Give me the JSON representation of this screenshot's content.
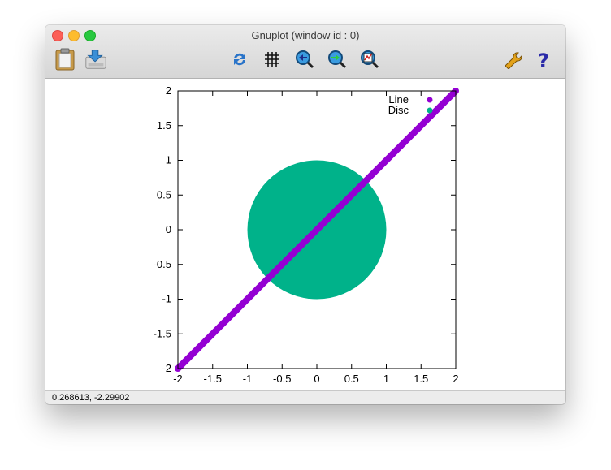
{
  "window": {
    "title": "Gnuplot (window id : 0)"
  },
  "toolbar": {
    "copy_icon": "clipboard-icon",
    "export_icon": "export-icon",
    "replot_icon": "replot-icon",
    "grid_icon": "grid-icon",
    "prev_zoom_icon": "zoom-previous-icon",
    "next_zoom_icon": "zoom-next-icon",
    "autoscale_icon": "zoom-autoscale-icon",
    "config_icon": "wrench-icon",
    "help_icon": "help-icon"
  },
  "colors": {
    "line": "#9400d3",
    "disc": "#00b28a"
  },
  "chart_data": {
    "type": "scatter",
    "xlim": [
      -2,
      2
    ],
    "ylim": [
      -2,
      2
    ],
    "xticks": [
      "-2",
      "-1.5",
      "-1",
      "-0.5",
      "0",
      "0.5",
      "1",
      "1.5",
      "2"
    ],
    "yticks": [
      "2",
      "1.5",
      "1",
      "0.5",
      "0",
      "-0.5",
      "-1",
      "-1.5",
      "-2"
    ],
    "legend_position": "top-right",
    "series": [
      {
        "name": "Line",
        "kind": "line y = x",
        "x": [
          -2,
          2
        ],
        "y": [
          -2,
          2
        ]
      },
      {
        "name": "Disc",
        "kind": "filled disc",
        "center": [
          0,
          0
        ],
        "radius": 1
      }
    ]
  },
  "status": {
    "coordinates": "0.268613, -2.29902"
  }
}
